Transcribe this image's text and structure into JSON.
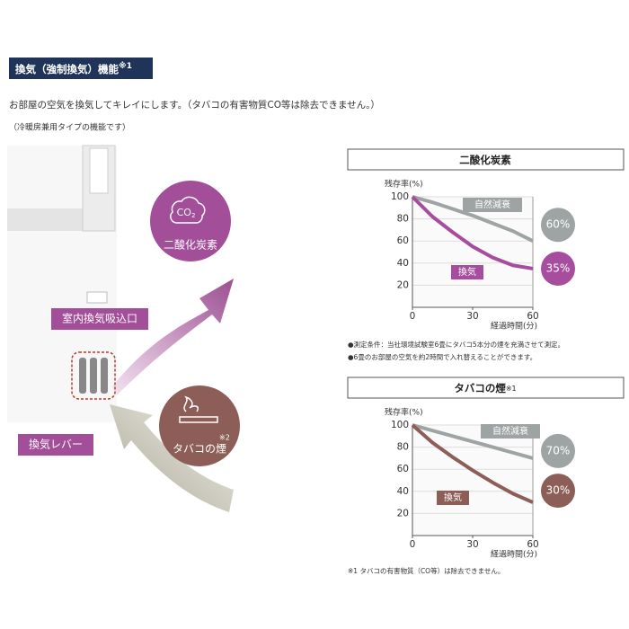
{
  "header": {
    "title": "換気（強制換気）機能",
    "title_mark": "※1",
    "description": "お部屋の空気を換気してキレイにします。（タバコの有害物質CO等は除去できません。）",
    "note": "（冷暖房兼用タイプの機能です）"
  },
  "illustration": {
    "co2_label": "CO",
    "co2_sub": "2",
    "co2_name": "二酸化炭素",
    "intake_label": "室内換気吸込口",
    "lever_label": "換気レバー",
    "smoke_mark": "※2",
    "smoke_name": "タバコの煙"
  },
  "chart_data": [
    {
      "type": "line",
      "title": "二酸化炭素",
      "y_label": "残存率(%)",
      "x_label": "経過時間(分)",
      "x": [
        0,
        10,
        20,
        30,
        40,
        50,
        60
      ],
      "xlim": [
        0,
        60
      ],
      "xticks": [
        0,
        30,
        60
      ],
      "ylim": [
        0,
        100
      ],
      "yticks": [
        20,
        40,
        60,
        80,
        100
      ],
      "grid": true,
      "series": [
        {
          "name": "自然減衰",
          "color": "#9ea3a3",
          "values": [
            100,
            95,
            89,
            83,
            76,
            69,
            60
          ],
          "value_labels": [
            null,
            null,
            null,
            null,
            null,
            null,
            "60%"
          ]
        },
        {
          "name": "換気",
          "color": "#a64d9e",
          "values": [
            100,
            82,
            68,
            55,
            45,
            38,
            35
          ],
          "value_labels": [
            null,
            null,
            null,
            null,
            null,
            null,
            "35%"
          ]
        }
      ],
      "notes": [
        "●測定条件：当社環境試験室6畳にタバコ5本分の煙を充満させて測定。",
        "●6畳のお部屋の空気を約2時間で入れ替えることができます。"
      ]
    },
    {
      "type": "line",
      "title": "タバコの煙",
      "title_mark": "※1",
      "y_label": "残存率(%)",
      "x_label": "経過時間(分)",
      "x": [
        0,
        10,
        20,
        30,
        40,
        50,
        60
      ],
      "xlim": [
        0,
        60
      ],
      "xticks": [
        0,
        30,
        60
      ],
      "ylim": [
        0,
        100
      ],
      "yticks": [
        20,
        40,
        60,
        80,
        100
      ],
      "grid": true,
      "series": [
        {
          "name": "自然減衰",
          "color": "#9ea3a3",
          "values": [
            100,
            95,
            90,
            85,
            80,
            75,
            70
          ],
          "value_labels": [
            null,
            null,
            null,
            null,
            null,
            null,
            "70%"
          ]
        },
        {
          "name": "換気",
          "color": "#8c5e57",
          "values": [
            100,
            84,
            71,
            59,
            48,
            38,
            30
          ],
          "value_labels": [
            null,
            null,
            null,
            null,
            null,
            null,
            "30%"
          ]
        }
      ],
      "notes": [
        "※1 タバコの有害物質（CO等）は除去できません。"
      ]
    }
  ]
}
